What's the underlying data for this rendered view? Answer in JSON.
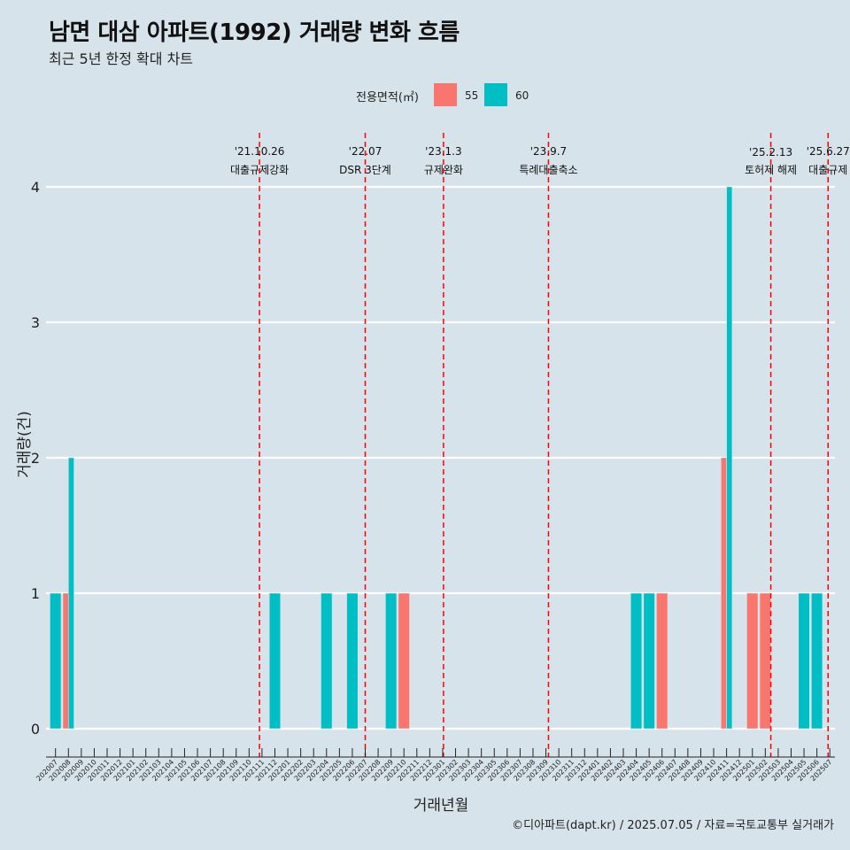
{
  "header": {
    "title": "남면 대삼 아파트(1992) 거래량 변화 흐름",
    "subtitle": "최근 5년 한정 확대 차트"
  },
  "legend": {
    "title": "전용면적(㎡)",
    "items": [
      {
        "label": "55",
        "color": "#F8766D"
      },
      {
        "label": "60",
        "color": "#00BFC4"
      }
    ]
  },
  "caption": "©디아파트(dapt.kr) / 2025.07.05 / 자료=국토교통부 실거래가",
  "chart_data": {
    "type": "bar",
    "xlabel": "거래년월",
    "ylabel": "거래량(건)",
    "ylim": [
      0,
      4
    ],
    "yticks": [
      0,
      1,
      2,
      3,
      4
    ],
    "grid": true,
    "legend_position": "top",
    "categories": [
      "202007",
      "202008",
      "202009",
      "202010",
      "202011",
      "202012",
      "202101",
      "202102",
      "202103",
      "202104",
      "202105",
      "202106",
      "202107",
      "202108",
      "202109",
      "202110",
      "202111",
      "202112",
      "202201",
      "202202",
      "202203",
      "202204",
      "202205",
      "202206",
      "202207",
      "202208",
      "202209",
      "202210",
      "202211",
      "202212",
      "202301",
      "202302",
      "202303",
      "202304",
      "202305",
      "202306",
      "202307",
      "202308",
      "202309",
      "202310",
      "202311",
      "202312",
      "202401",
      "202402",
      "202403",
      "202404",
      "202405",
      "202406",
      "202407",
      "202408",
      "202409",
      "202410",
      "202411",
      "202412",
      "202501",
      "202502",
      "202503",
      "202504",
      "202505",
      "202506",
      "202507"
    ],
    "bars": [
      {
        "month": "202007",
        "series": "60",
        "value": 1
      },
      {
        "month": "202008",
        "series": "55",
        "value": 1
      },
      {
        "month": "202008",
        "series": "60",
        "value": 2
      },
      {
        "month": "202112",
        "series": "60",
        "value": 1
      },
      {
        "month": "202204",
        "series": "60",
        "value": 1
      },
      {
        "month": "202206",
        "series": "60",
        "value": 1
      },
      {
        "month": "202209",
        "series": "60",
        "value": 1
      },
      {
        "month": "202210",
        "series": "55",
        "value": 1
      },
      {
        "month": "202404",
        "series": "60",
        "value": 1
      },
      {
        "month": "202405",
        "series": "60",
        "value": 1
      },
      {
        "month": "202406",
        "series": "55",
        "value": 1
      },
      {
        "month": "202411",
        "series": "55",
        "value": 2
      },
      {
        "month": "202411",
        "series": "60",
        "value": 4
      },
      {
        "month": "202501",
        "series": "55",
        "value": 1
      },
      {
        "month": "202502",
        "series": "55",
        "value": 1
      },
      {
        "month": "202505",
        "series": "60",
        "value": 1
      },
      {
        "month": "202506",
        "series": "60",
        "value": 1
      }
    ],
    "series": [
      {
        "name": "55",
        "color": "#F8766D"
      },
      {
        "name": "60",
        "color": "#00BFC4"
      }
    ],
    "annotations": [
      {
        "date": "2021-10-26",
        "line1": "'21.10.26",
        "line2": "대출규제강화"
      },
      {
        "date": "2022-07",
        "line1": "'22.07",
        "line2": "DSR 3단계"
      },
      {
        "date": "2023-01-03",
        "line1": "'23.1.3",
        "line2": "규제완화"
      },
      {
        "date": "2023-09-07",
        "line1": "'23.9.7",
        "line2": "특례대출축소"
      },
      {
        "date": "2025-02-13",
        "line1": "'25.2.13",
        "line2": "토허제 해제"
      },
      {
        "date": "2025-06-27",
        "line1": "'25.6.27",
        "line2": "대출규제"
      }
    ],
    "annotation_color": "#FF0000"
  }
}
